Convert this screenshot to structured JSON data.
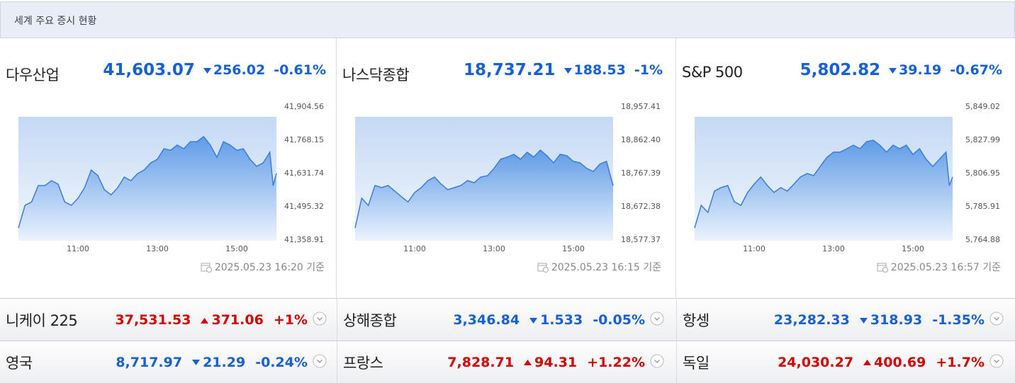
{
  "header": {
    "title": "세계 주요 증시 현황"
  },
  "panels": [
    {
      "name": "다우산업",
      "value": "41,603.07",
      "change": "256.02",
      "percent": "-0.61%",
      "direction": "down",
      "color": "#1560d8",
      "timestamp": "2025.05.23 16:20 기준",
      "chart_data": {
        "type": "line",
        "color": "#3a7be0",
        "x": [
          "09:30",
          "09:40",
          "09:50",
          "10:00",
          "10:10",
          "10:20",
          "10:30",
          "10:40",
          "10:50",
          "11:00",
          "11:10",
          "11:20",
          "11:30",
          "11:40",
          "11:50",
          "12:00",
          "12:10",
          "12:20",
          "12:30",
          "12:40",
          "12:50",
          "13:00",
          "13:10",
          "13:20",
          "13:30",
          "13:40",
          "13:50",
          "14:00",
          "14:10",
          "14:20",
          "14:30",
          "14:40",
          "14:50",
          "15:00",
          "15:10",
          "15:20",
          "15:30",
          "15:40",
          "15:50",
          "15:55",
          "16:00"
        ],
        "values": [
          41408,
          41501,
          41515,
          41582,
          41582,
          41602,
          41588,
          41515,
          41501,
          41530,
          41573,
          41646,
          41623,
          41565,
          41544,
          41573,
          41617,
          41602,
          41631,
          41646,
          41675,
          41690,
          41733,
          41727,
          41748,
          41733,
          41762,
          41762,
          41783,
          41748,
          41698,
          41762,
          41748,
          41727,
          41733,
          41690,
          41661,
          41675,
          41719,
          41582,
          41632
        ],
        "xlim": [
          "09:30",
          "16:00"
        ],
        "xticks": [
          "11:00",
          "13:00",
          "15:00"
        ],
        "ylim": [
          41358.91,
          41904.56
        ],
        "yticks": [
          {
            "value": 41358.91,
            "label": "41,358.91"
          },
          {
            "value": 41495.32,
            "label": "41,495.32"
          },
          {
            "value": 41631.74,
            "label": "41,631.74"
          },
          {
            "value": 41768.15,
            "label": "41,768.15"
          },
          {
            "value": 41904.56,
            "label": "41,904.56"
          }
        ]
      }
    },
    {
      "name": "나스닥종합",
      "value": "18,737.21",
      "change": "188.53",
      "percent": "-1%",
      "direction": "down",
      "color": "#1560d8",
      "timestamp": "2025.05.23 16:15 기준",
      "chart_data": {
        "type": "line",
        "color": "#3a7be0",
        "x": [
          "09:30",
          "09:40",
          "09:50",
          "10:00",
          "10:10",
          "10:20",
          "10:30",
          "10:40",
          "10:50",
          "11:00",
          "11:10",
          "11:20",
          "11:30",
          "11:40",
          "11:50",
          "12:00",
          "12:10",
          "12:20",
          "12:30",
          "12:40",
          "12:50",
          "13:00",
          "13:10",
          "13:20",
          "13:30",
          "13:40",
          "13:50",
          "14:00",
          "14:10",
          "14:20",
          "14:30",
          "14:40",
          "14:50",
          "15:00",
          "15:10",
          "15:20",
          "15:30",
          "15:40",
          "15:50",
          "15:55",
          "16:00"
        ],
        "values": [
          18612,
          18697,
          18676,
          18733,
          18727,
          18733,
          18717,
          18701,
          18686,
          18713,
          18727,
          18747,
          18757,
          18737,
          18721,
          18727,
          18733,
          18747,
          18741,
          18757,
          18761,
          18782,
          18808,
          18814,
          18822,
          18808,
          18828,
          18814,
          18834,
          18818,
          18798,
          18822,
          18818,
          18802,
          18798,
          18782,
          18773,
          18794,
          18802,
          18767,
          18733
        ],
        "xlim": [
          "09:30",
          "16:00"
        ],
        "xticks": [
          "11:00",
          "13:00",
          "15:00"
        ],
        "ylim": [
          18577.37,
          18957.41
        ],
        "yticks": [
          {
            "value": 18577.37,
            "label": "18,577.37"
          },
          {
            "value": 18672.38,
            "label": "18,672.38"
          },
          {
            "value": 18767.39,
            "label": "18,767.39"
          },
          {
            "value": 18862.4,
            "label": "18,862.40"
          },
          {
            "value": 18957.41,
            "label": "18,957.41"
          }
        ]
      }
    },
    {
      "name": "S&P 500",
      "value": "5,802.82",
      "change": "39.19",
      "percent": "-0.67%",
      "direction": "down",
      "color": "#1560d8",
      "timestamp": "2025.05.23 16:57 기준",
      "chart_data": {
        "type": "line",
        "color": "#3a7be0",
        "x": [
          "09:30",
          "09:40",
          "09:50",
          "10:00",
          "10:10",
          "10:20",
          "10:30",
          "10:40",
          "10:50",
          "11:00",
          "11:10",
          "11:20",
          "11:30",
          "11:40",
          "11:50",
          "12:00",
          "12:10",
          "12:20",
          "12:30",
          "12:40",
          "12:50",
          "13:00",
          "13:10",
          "13:20",
          "13:30",
          "13:40",
          "13:50",
          "14:00",
          "14:10",
          "14:20",
          "14:30",
          "14:40",
          "14:50",
          "15:00",
          "15:10",
          "15:20",
          "15:30",
          "15:40",
          "15:50",
          "15:55",
          "16:00"
        ],
        "values": [
          5772.5,
          5786.8,
          5782.3,
          5795.8,
          5798.0,
          5799.3,
          5789.0,
          5786.8,
          5794.9,
          5800.2,
          5804.7,
          5799.3,
          5794.9,
          5798.0,
          5795.8,
          5800.2,
          5804.7,
          5806.9,
          5805.6,
          5811.4,
          5817.2,
          5820.4,
          5820.4,
          5822.6,
          5824.8,
          5822.6,
          5827.1,
          5828.0,
          5824.8,
          5820.4,
          5824.8,
          5822.6,
          5824.8,
          5819.0,
          5822.6,
          5815.9,
          5811.4,
          5815.9,
          5820.4,
          5799.3,
          5804.7
        ],
        "xlim": [
          "09:30",
          "16:00"
        ],
        "xticks": [
          "11:00",
          "13:00",
          "15:00"
        ],
        "ylim": [
          5764.88,
          5849.02
        ],
        "yticks": [
          {
            "value": 5764.88,
            "label": "5,764.88"
          },
          {
            "value": 5785.91,
            "label": "5,785.91"
          },
          {
            "value": 5806.95,
            "label": "5,806.95"
          },
          {
            "value": 5827.99,
            "label": "5,827.99"
          },
          {
            "value": 5849.02,
            "label": "5,849.02"
          }
        ]
      }
    }
  ],
  "rows": [
    [
      {
        "name": "니케이 225",
        "value": "37,531.53",
        "change": "371.06",
        "percent": "+1%",
        "direction": "up",
        "color": "#d40000"
      },
      {
        "name": "상해종합",
        "value": "3,346.84",
        "change": "1.533",
        "percent": "-0.05%",
        "direction": "down",
        "color": "#1560d8"
      },
      {
        "name": "항셍",
        "value": "23,282.33",
        "change": "318.93",
        "percent": "-1.35%",
        "direction": "down",
        "color": "#1560d8"
      }
    ],
    [
      {
        "name": "영국",
        "value": "8,717.97",
        "change": "21.29",
        "percent": "-0.24%",
        "direction": "down",
        "color": "#1560d8"
      },
      {
        "name": "프랑스",
        "value": "7,828.71",
        "change": "94.31",
        "percent": "+1.22%",
        "direction": "up",
        "color": "#d40000"
      },
      {
        "name": "독일",
        "value": "24,030.27",
        "change": "400.69",
        "percent": "+1.7%",
        "direction": "up",
        "color": "#d40000"
      }
    ]
  ]
}
